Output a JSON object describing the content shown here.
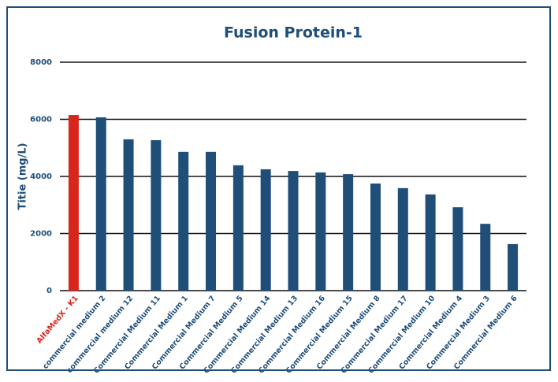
{
  "chart_data": {
    "type": "bar",
    "title": "Fusion Protein-1",
    "y_label": "Titie (mg/L)",
    "categories": [
      "AlfaMedX - K1",
      "commercial medium 2",
      "commercial medium 12",
      "Commercial Medium 11",
      "Commercial Medium 1",
      "Commercial Medium 7",
      "Commercial Medium 5",
      "Commercial Medium 14",
      "Commercial Medium 13",
      "Commercial Medium 16",
      "Commercial Medium 15",
      "Commercial Medium 8",
      "Commercial Medium 17",
      "Commercial Medium 10",
      "Commercial Medium 4",
      "Commercial Medium 3",
      "Commercial Medium 6"
    ],
    "values": [
      6150,
      6070,
      5300,
      5270,
      4860,
      4860,
      4390,
      4250,
      4190,
      4140,
      4080,
      3750,
      3590,
      3370,
      2920,
      2340,
      1630
    ],
    "colors": [
      "#d9261c",
      "#1f4e79",
      "#1f4e79",
      "#1f4e79",
      "#1f4e79",
      "#1f4e79",
      "#1f4e79",
      "#1f4e79",
      "#1f4e79",
      "#1f4e79",
      "#1f4e79",
      "#1f4e79",
      "#1f4e79",
      "#1f4e79",
      "#1f4e79",
      "#1f4e79",
      "#1f4e79"
    ],
    "ylim": [
      0,
      8000
    ],
    "yticks": [
      0,
      2000,
      4000,
      6000,
      8000
    ],
    "grid": true
  }
}
